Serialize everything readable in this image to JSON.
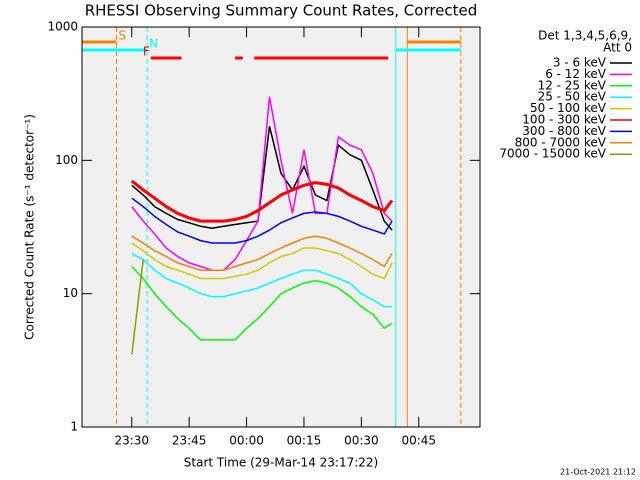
{
  "chart_data": {
    "type": "line",
    "title": "RHESSI Observing Summary Count Rates, Corrected",
    "xlabel": "Start Time (29-Mar-14 23:17:22)",
    "ylabel": "Corrected Count Rate (s⁻¹ detector⁻¹)",
    "legend_header": [
      "Det 1,3,4,5,6,9,",
      "Att 0"
    ],
    "footer": "21-Oct-2021 21:12",
    "log_y": true,
    "xlim": [
      "23:17",
      "01:01"
    ],
    "xticks": [
      "23:30",
      "23:45",
      "00:00",
      "00:15",
      "00:30",
      "00:45"
    ],
    "ylim": [
      1,
      1000
    ],
    "yticks": [
      1,
      10,
      100,
      1000
    ],
    "x": [
      "23:30",
      "23:33",
      "23:36",
      "23:39",
      "23:42",
      "23:45",
      "23:48",
      "23:51",
      "23:54",
      "23:57",
      "00:00",
      "00:03",
      "00:06",
      "00:09",
      "00:12",
      "00:15",
      "00:18",
      "00:21",
      "00:24",
      "00:27",
      "00:30",
      "00:33",
      "00:36",
      "00:38"
    ],
    "series": [
      {
        "name": "3 - 6 keV",
        "color": "#000000",
        "values": [
          65,
          55,
          45,
          40,
          36,
          34,
          32,
          31,
          32,
          33,
          34,
          35,
          180,
          80,
          60,
          90,
          55,
          50,
          130,
          110,
          100,
          60,
          35,
          30
        ]
      },
      {
        "name": "6 - 12 keV",
        "color": "#ff00ff",
        "values": [
          45,
          35,
          28,
          22,
          19,
          17,
          16,
          15,
          15,
          18,
          25,
          35,
          300,
          100,
          40,
          120,
          40,
          40,
          150,
          130,
          120,
          80,
          40,
          35
        ]
      },
      {
        "name": "12 - 25 keV",
        "color": "#00ff00",
        "values": [
          16,
          13,
          10,
          8,
          6.5,
          5.5,
          4.5,
          4.5,
          4.5,
          4.5,
          5.5,
          6.5,
          8,
          10,
          11,
          12,
          12.5,
          12,
          11,
          9.5,
          8,
          7,
          5.5,
          6
        ]
      },
      {
        "name": "25 - 50 keV",
        "color": "#00ffff",
        "values": [
          20,
          18,
          15,
          13,
          12,
          11,
          10,
          9.5,
          9.5,
          10,
          10.5,
          11,
          12,
          13,
          14,
          15,
          15,
          14,
          13,
          12,
          10,
          9,
          8,
          8
        ]
      },
      {
        "name": "50 - 100 keV",
        "color": "#cccc00",
        "values": [
          24,
          21,
          18,
          16,
          15,
          14,
          13,
          13,
          13,
          13.5,
          14,
          15,
          17,
          19,
          20,
          22,
          22,
          21,
          20,
          18,
          16,
          14,
          13,
          17
        ]
      },
      {
        "name": "100 - 300 keV",
        "color": "#ff0000",
        "values": [
          70,
          60,
          52,
          45,
          40,
          37,
          35,
          35,
          35,
          36,
          38,
          42,
          48,
          55,
          60,
          65,
          68,
          66,
          62,
          55,
          50,
          45,
          42,
          50
        ]
      },
      {
        "name": "300 - 800 keV",
        "color": "#0000ff",
        "values": [
          52,
          45,
          38,
          33,
          29,
          27,
          25,
          24,
          24,
          24,
          25,
          27,
          30,
          34,
          37,
          40,
          41,
          40,
          38,
          35,
          32,
          30,
          28,
          35
        ]
      },
      {
        "name": "800 - 7000 keV",
        "color": "#ff8000",
        "values": [
          27,
          24,
          21,
          19,
          17,
          16,
          15,
          15,
          15,
          16,
          17,
          18,
          20,
          22,
          24,
          26,
          27,
          26,
          24,
          22,
          20,
          18,
          16,
          20
        ]
      },
      {
        "name": "7000 - 15000 keV",
        "color": "#999900",
        "values": [
          3.5,
          18,
          null,
          null,
          null,
          null,
          null,
          null,
          null,
          null,
          null,
          null,
          null,
          null,
          null,
          null,
          null,
          null,
          null,
          null,
          null,
          null,
          null,
          null
        ]
      }
    ],
    "vlines": [
      {
        "x": "23:26",
        "color": "#ff8000",
        "dashed": true
      },
      {
        "x": "23:34",
        "color": "#00ffff",
        "dashed": true
      },
      {
        "x": "00:39",
        "color": "#00ffff",
        "dashed": false
      },
      {
        "x": "00:42",
        "color": "#ff8000",
        "dashed": false
      },
      {
        "x": "00:56",
        "color": "#ff8000",
        "dashed": true
      }
    ],
    "flags": [
      {
        "label": "S",
        "color": "#ff8000",
        "segments": [
          [
            "23:17",
            "23:26"
          ],
          [
            "00:42",
            "00:56"
          ]
        ]
      },
      {
        "label": "N",
        "color": "#00ffff",
        "segments": [
          [
            "23:17",
            "23:34"
          ],
          [
            "00:39",
            "00:56"
          ]
        ]
      },
      {
        "label": "F",
        "color": "#ff0000",
        "segments": [
          [
            "23:35",
            "23:43"
          ],
          [
            "23:57",
            "23:59"
          ],
          [
            "00:02",
            "00:37"
          ]
        ]
      }
    ]
  }
}
